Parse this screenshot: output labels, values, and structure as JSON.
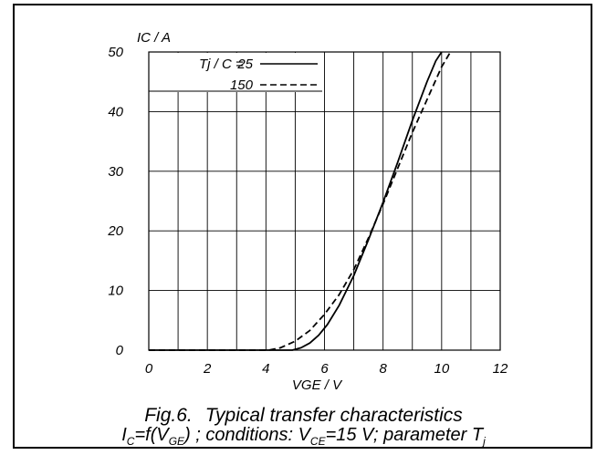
{
  "chart_data": {
    "type": "line",
    "ylabel": "IC / A",
    "xlabel": "VGE / V",
    "xlim": [
      0,
      12
    ],
    "ylim": [
      0,
      50
    ],
    "xticks": [
      0,
      2,
      4,
      6,
      8,
      10,
      12
    ],
    "yticks": [
      0,
      10,
      20,
      30,
      40,
      50
    ],
    "grid": true,
    "legend_title": "Tj / C =",
    "legend_placement": "top-left",
    "series": [
      {
        "name": "25",
        "style": "solid",
        "x": [
          0,
          4.9,
          5.2,
          5.5,
          5.8,
          6.1,
          6.5,
          7.0,
          7.5,
          8.0,
          8.5,
          9.0,
          9.5,
          9.8,
          10.0
        ],
        "y": [
          0,
          0,
          0.4,
          1.2,
          2.5,
          4.3,
          7.5,
          12.5,
          18.5,
          24.8,
          31.5,
          38.5,
          45.0,
          48.5,
          50.0
        ]
      },
      {
        "name": "150",
        "style": "dashed",
        "x": [
          0,
          4.1,
          4.5,
          5.0,
          5.5,
          6.0,
          6.5,
          7.0,
          7.5,
          8.0,
          8.5,
          9.0,
          9.5,
          10.0,
          10.3
        ],
        "y": [
          0,
          0,
          0.4,
          1.5,
          3.3,
          6.0,
          9.3,
          13.5,
          18.8,
          24.5,
          30.5,
          36.5,
          42.0,
          47.5,
          50.0
        ]
      }
    ]
  },
  "caption": {
    "fig_label": "Fig.6.",
    "title": "Typical transfer characteristics",
    "line2": {
      "ic": "I",
      "ic_sub": "C",
      "eq": "=f(V",
      "vge_sub": "GE",
      "cond": ") ; conditions: V",
      "vce_sub": "CE",
      "cond2": "=15 V; parameter T",
      "tj_sub": "j"
    }
  }
}
